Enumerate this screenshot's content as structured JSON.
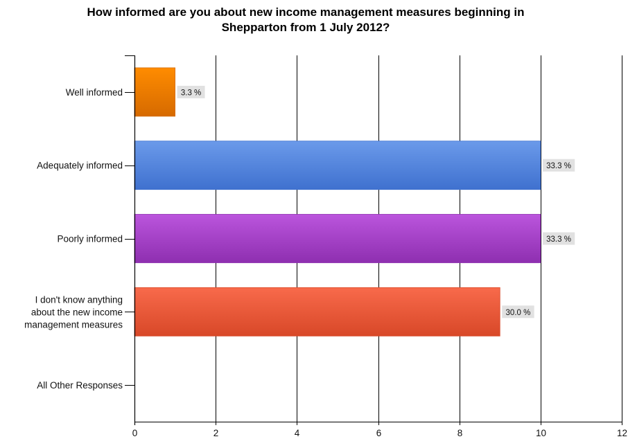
{
  "chart_data": {
    "type": "bar",
    "orientation": "horizontal",
    "title": "How informed are you about new income management measures beginning in Shepparton from 1 July 2012?",
    "title_lines": [
      "How informed are you about new income management measures beginning in",
      "Shepparton from 1 July 2012?"
    ],
    "categories": [
      "Well informed",
      "Adequately informed",
      "Poorly informed",
      "I don't know anything about the new income management measures",
      "All Other Responses"
    ],
    "category_label_lines": [
      [
        "Well informed"
      ],
      [
        "Adequately informed"
      ],
      [
        "Poorly informed"
      ],
      [
        "I don't know anything",
        "about the new income",
        "management measures"
      ],
      [
        "All Other Responses"
      ]
    ],
    "values": [
      1,
      10,
      10,
      9,
      0
    ],
    "data_labels": [
      "3.3 %",
      "33.3 %",
      "33.3 %",
      "30.0 %",
      ""
    ],
    "xlim": [
      0,
      12
    ],
    "xticks": [
      0,
      2,
      4,
      6,
      8,
      10,
      12
    ],
    "tick_labels": [
      "0",
      "2",
      "4",
      "6",
      "8",
      "10",
      "12"
    ],
    "xlabel": "",
    "ylabel": "",
    "grid": "vertical",
    "legend": "none",
    "bar_colors": [
      {
        "top": "#ff8c00",
        "bottom": "#d66a00"
      },
      {
        "top": "#6b9aea",
        "bottom": "#3f71cf"
      },
      {
        "top": "#bb55dd",
        "bottom": "#8e2fb0"
      },
      {
        "top": "#f86a4b",
        "bottom": "#d84828"
      },
      {
        "top": "#999999",
        "bottom": "#777777"
      }
    ],
    "data_label_bg": "#e1e1e1",
    "grid_color": "#000000"
  }
}
